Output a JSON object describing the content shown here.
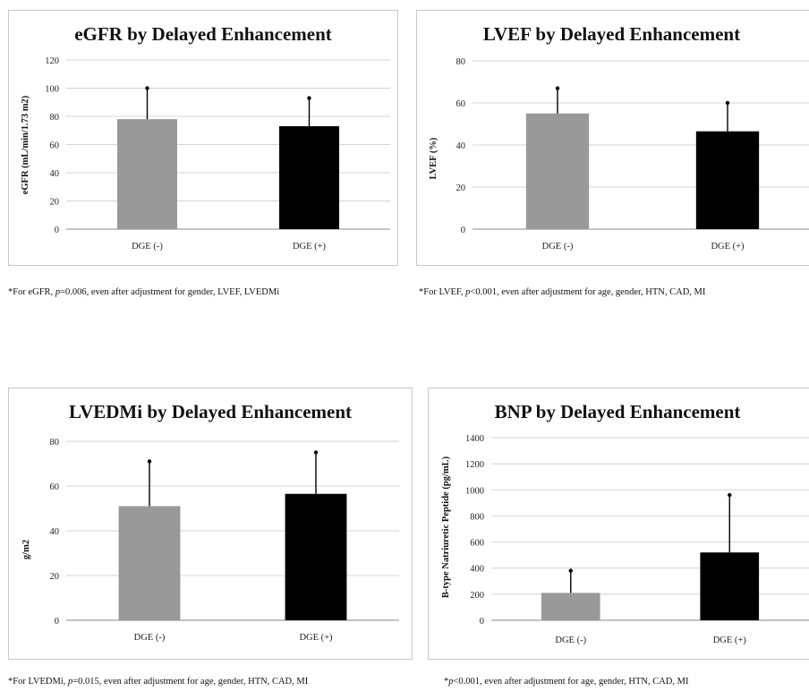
{
  "chart_data": [
    {
      "type": "bar",
      "title": "eGFR by Delayed Enhancement",
      "ylabel": "eGFR (mL/min/1.73 m2)",
      "xlabel": "",
      "categories": [
        "DGE (-)",
        "DGE (+)"
      ],
      "values": [
        78,
        73
      ],
      "error_upper": [
        100,
        93
      ],
      "ylim": [
        0,
        120
      ],
      "yticks": [
        0,
        20,
        40,
        60,
        80,
        100,
        120
      ],
      "bar_colors": [
        "#999999",
        "#000000"
      ],
      "grid": true,
      "footnote": {
        "pre": "*For eGFR, ",
        "p": "p",
        "post": "=0.006, even after adjustment for gender, LVEF, LVEDMi"
      }
    },
    {
      "type": "bar",
      "title": "LVEF by Delayed Enhancement",
      "ylabel": "LVEF (%)",
      "xlabel": "",
      "categories": [
        "DGE (-)",
        "DGE (+)"
      ],
      "values": [
        55,
        46.5
      ],
      "error_upper": [
        67,
        60
      ],
      "ylim": [
        0,
        80
      ],
      "yticks": [
        0,
        20,
        40,
        60,
        80
      ],
      "bar_colors": [
        "#999999",
        "#000000"
      ],
      "grid": true,
      "footnote": {
        "pre": "*For LVEF, ",
        "p": "p",
        "post": "<0.001, even after adjustment for age, gender, HTN, CAD, MI"
      }
    },
    {
      "type": "bar",
      "title": "LVEDMi by Delayed Enhancement",
      "ylabel": "g/m2",
      "xlabel": "",
      "categories": [
        "DGE (-)",
        "DGE (+)"
      ],
      "values": [
        51,
        56.5
      ],
      "error_upper": [
        71,
        75
      ],
      "ylim": [
        0,
        80
      ],
      "yticks": [
        0,
        20,
        40,
        60,
        80
      ],
      "bar_colors": [
        "#999999",
        "#000000"
      ],
      "grid": true,
      "footnote": {
        "pre": "*For LVEDMi, ",
        "p": "p",
        "post": "=0.015, even after adjustment for age, gender, HTN, CAD, MI"
      }
    },
    {
      "type": "bar",
      "title": "BNP by Delayed Enhancement",
      "ylabel": "B-type Natriuretic Peptide (pg/mL)",
      "xlabel": "",
      "categories": [
        "DGE (-)",
        "DGE (+)"
      ],
      "values": [
        210,
        520
      ],
      "error_upper": [
        380,
        960
      ],
      "ylim": [
        0,
        1400
      ],
      "yticks": [
        0,
        200,
        400,
        600,
        800,
        1000,
        1200,
        1400
      ],
      "bar_colors": [
        "#999999",
        "#000000"
      ],
      "grid": true,
      "footnote": {
        "pre": "*",
        "p": "p",
        "post": "<0.001, even after adjustment for age, gender, HTN, CAD, MI"
      }
    }
  ]
}
